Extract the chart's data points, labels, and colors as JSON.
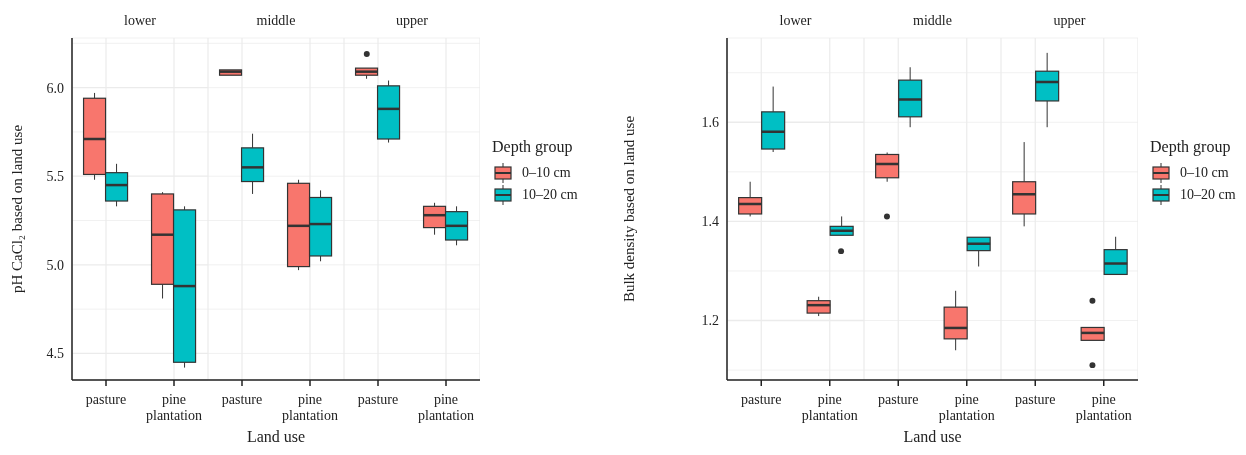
{
  "chart_data": [
    {
      "type": "box",
      "title": "lower",
      "ylabel": "pH CaCl₂ based on land use",
      "categories": [
        "pasture",
        "pine plantation"
      ],
      "ylim": [
        4.35,
        6.28
      ],
      "yticks": [
        {
          "value": 4.5,
          "label": "4.5"
        },
        {
          "value": 4.75,
          "label": null
        },
        {
          "value": 5,
          "label": "5.0"
        },
        {
          "value": 5.25,
          "label": null
        },
        {
          "value": 5.5,
          "label": "5.5"
        },
        {
          "value": 5.75,
          "label": null
        },
        {
          "value": 6,
          "label": "6.0"
        },
        {
          "value": 6.25,
          "label": null
        }
      ],
      "grid": true,
      "legend": false,
      "series": [
        {
          "color": "#f8766d",
          "boxes": [
            {
              "low": 5.48,
              "q1": 5.51,
              "median": 5.71,
              "q3": 5.94,
              "high": 5.97
            },
            {
              "low": 4.81,
              "q1": 4.89,
              "median": 5.17,
              "q3": 5.4,
              "high": 5.41
            }
          ]
        },
        {
          "color": "#00bfc4",
          "boxes": [
            {
              "low": 5.33,
              "q1": 5.36,
              "median": 5.45,
              "q3": 5.52,
              "high": 5.57
            },
            {
              "low": 4.42,
              "q1": 4.45,
              "median": 4.88,
              "q3": 5.31,
              "high": 5.33
            }
          ]
        }
      ]
    },
    {
      "type": "box",
      "title": "middle",
      "xlabel": "Land use",
      "categories": [
        "pasture",
        "pine plantation"
      ],
      "ylim": [
        4.35,
        6.28
      ],
      "yticks": [
        4.5,
        4.75,
        5,
        5.25,
        5.5,
        5.75,
        6,
        6.25
      ],
      "grid": true,
      "legend": false,
      "tick_labels": "x",
      "series": [
        {
          "color": "#f8766d",
          "boxes": [
            {
              "low": 6.07,
              "q1": 6.07,
              "median": 6.09,
              "q3": 6.1,
              "high": 6.1
            },
            {
              "low": 4.97,
              "q1": 4.99,
              "median": 5.22,
              "q3": 5.46,
              "high": 5.48
            }
          ]
        },
        {
          "color": "#00bfc4",
          "boxes": [
            {
              "low": 5.4,
              "q1": 5.47,
              "median": 5.55,
              "q3": 5.66,
              "high": 5.74
            },
            {
              "low": 5.02,
              "q1": 5.05,
              "median": 5.23,
              "q3": 5.38,
              "high": 5.42
            }
          ]
        }
      ]
    },
    {
      "type": "box",
      "title": "upper",
      "legend_title": "Depth group",
      "categories": [
        "pasture",
        "pine plantation"
      ],
      "ylim": [
        4.35,
        6.28
      ],
      "yticks": [
        4.5,
        4.75,
        5,
        5.25,
        5.5,
        5.75,
        6,
        6.25
      ],
      "grid": true,
      "legend": "right",
      "tick_labels": "x",
      "series": [
        {
          "name": "0–10 cm",
          "color": "#f8766d",
          "boxes": [
            {
              "low": 6.05,
              "q1": 6.07,
              "median": 6.09,
              "q3": 6.11,
              "high": 6.11,
              "outliers": [
                6.19
              ]
            },
            {
              "low": 5.17,
              "q1": 5.21,
              "median": 5.28,
              "q3": 5.33,
              "high": 5.35
            }
          ]
        },
        {
          "name": "10–20 cm",
          "color": "#00bfc4",
          "boxes": [
            {
              "low": 5.69,
              "q1": 5.71,
              "median": 5.88,
              "q3": 6.01,
              "high": 6.04
            },
            {
              "low": 5.11,
              "q1": 5.14,
              "median": 5.22,
              "q3": 5.3,
              "high": 5.33
            }
          ]
        }
      ]
    },
    {
      "type": "box",
      "title": "lower",
      "ylabel": "Bulk density based on land use",
      "categories": [
        "pasture",
        "pine plantation"
      ],
      "ylim": [
        1.08,
        1.77
      ],
      "yticks": [
        {
          "value": 1.1,
          "label": null
        },
        1.2,
        {
          "value": 1.3,
          "label": null
        },
        1.4,
        {
          "value": 1.5,
          "label": null
        },
        1.6,
        {
          "value": 1.7,
          "label": null
        }
      ],
      "grid": true,
      "legend": false,
      "series": [
        {
          "color": "#f8766d",
          "boxes": [
            {
              "low": 1.41,
              "q1": 1.415,
              "median": 1.435,
              "q3": 1.448,
              "high": 1.48
            },
            {
              "low": 1.209,
              "q1": 1.215,
              "median": 1.231,
              "q3": 1.24,
              "high": 1.248
            }
          ]
        },
        {
          "color": "#00bfc4",
          "boxes": [
            {
              "low": 1.54,
              "q1": 1.546,
              "median": 1.581,
              "q3": 1.621,
              "high": 1.672
            },
            {
              "low": 1.372,
              "q1": 1.372,
              "median": 1.381,
              "q3": 1.39,
              "high": 1.41,
              "outliers": [
                1.34
              ]
            }
          ]
        }
      ]
    },
    {
      "type": "box",
      "title": "middle",
      "xlabel": "Land use",
      "categories": [
        "pasture",
        "pine plantation"
      ],
      "ylim": [
        1.08,
        1.77
      ],
      "yticks": [
        1.1,
        1.2,
        1.3,
        1.4,
        1.5,
        1.6,
        1.7
      ],
      "grid": true,
      "legend": false,
      "tick_labels": "x",
      "series": [
        {
          "color": "#f8766d",
          "boxes": [
            {
              "low": 1.48,
              "q1": 1.488,
              "median": 1.516,
              "q3": 1.535,
              "high": 1.539,
              "outliers": [
                1.41
              ]
            },
            {
              "low": 1.14,
              "q1": 1.163,
              "median": 1.185,
              "q3": 1.227,
              "high": 1.26
            }
          ]
        },
        {
          "color": "#00bfc4",
          "boxes": [
            {
              "low": 1.59,
              "q1": 1.611,
              "median": 1.646,
              "q3": 1.685,
              "high": 1.711
            },
            {
              "low": 1.309,
              "q1": 1.341,
              "median": 1.355,
              "q3": 1.368,
              "high": 1.368
            }
          ]
        }
      ]
    },
    {
      "type": "box",
      "title": "upper",
      "legend_title": "Depth group",
      "categories": [
        "pasture",
        "pine plantation"
      ],
      "ylim": [
        1.08,
        1.77
      ],
      "yticks": [
        1.1,
        1.2,
        1.3,
        1.4,
        1.5,
        1.6,
        1.7
      ],
      "grid": true,
      "legend": "right",
      "tick_labels": "x",
      "series": [
        {
          "name": "0–10 cm",
          "color": "#f8766d",
          "boxes": [
            {
              "low": 1.39,
              "q1": 1.415,
              "median": 1.455,
              "q3": 1.48,
              "high": 1.56
            },
            {
              "low": 1.16,
              "q1": 1.16,
              "median": 1.175,
              "q3": 1.186,
              "high": 1.186,
              "outliers": [
                1.24,
                1.11
              ]
            }
          ]
        },
        {
          "name": "10–20 cm",
          "color": "#00bfc4",
          "boxes": [
            {
              "low": 1.59,
              "q1": 1.643,
              "median": 1.681,
              "q3": 1.703,
              "high": 1.74
            },
            {
              "low": 1.293,
              "q1": 1.293,
              "median": 1.315,
              "q3": 1.343,
              "high": 1.369
            }
          ]
        }
      ]
    }
  ]
}
